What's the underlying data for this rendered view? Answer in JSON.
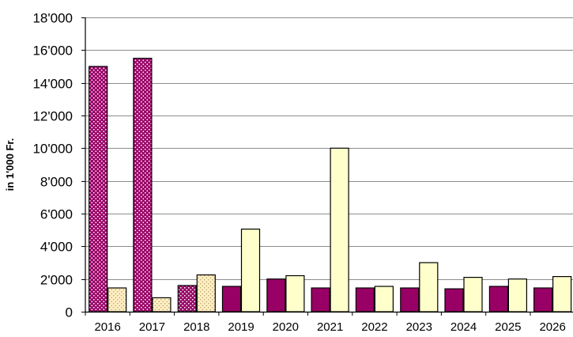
{
  "chart_data": {
    "type": "bar",
    "title": "",
    "xlabel": "",
    "ylabel": "in 1'000 Fr.",
    "ylim": [
      0,
      18000
    ],
    "yticks": [
      0,
      2000,
      4000,
      6000,
      8000,
      10000,
      12000,
      14000,
      16000,
      18000
    ],
    "ytick_labels": [
      "0",
      "2'000",
      "4'000",
      "6'000",
      "8'000",
      "10'000",
      "12'000",
      "14'000",
      "16'000",
      "18'000"
    ],
    "grid": true,
    "legend": "none",
    "categories": [
      "2016",
      "2017",
      "2018",
      "2019",
      "2020",
      "2021",
      "2022",
      "2023",
      "2024",
      "2025",
      "2026"
    ],
    "series": [
      {
        "values": [
          15000,
          15500,
          1600,
          1550,
          2000,
          1450,
          1450,
          1450,
          1400,
          1550,
          1450
        ],
        "color": "#990066",
        "dotted": [
          true,
          true,
          true,
          false,
          false,
          false,
          false,
          false,
          false,
          false,
          false
        ]
      },
      {
        "values": [
          1450,
          850,
          2250,
          5050,
          2200,
          10000,
          1550,
          3000,
          2100,
          2000,
          2150
        ],
        "color": "#FFFFCC",
        "dotted": [
          true,
          true,
          true,
          false,
          false,
          false,
          false,
          false,
          false,
          false,
          false
        ]
      }
    ]
  }
}
